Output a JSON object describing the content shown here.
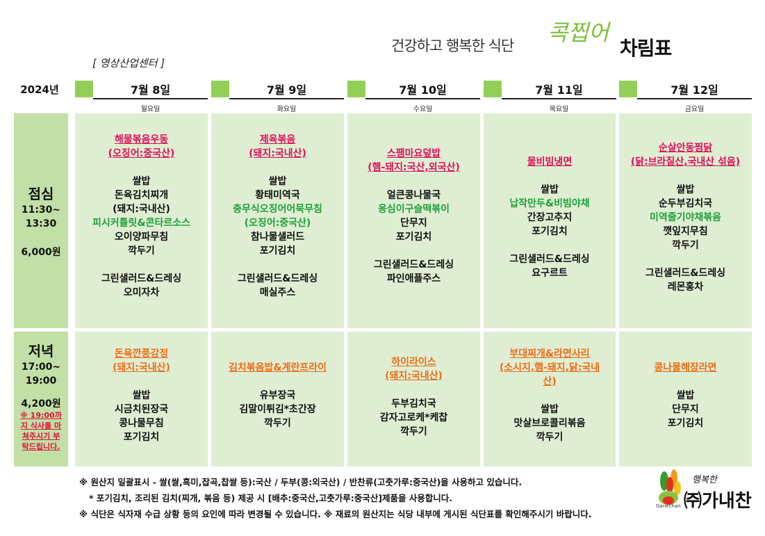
{
  "header": {
    "subtitle": "건강하고 행복한 식단",
    "script": "콕찝어",
    "title": "차림표",
    "center": "[ 영상산업센터 ]"
  },
  "year": "2024년",
  "days": [
    {
      "date": "7월 8일",
      "dow": "월요일"
    },
    {
      "date": "7월 9일",
      "dow": "화요일"
    },
    {
      "date": "7월 10일",
      "dow": "수요일"
    },
    {
      "date": "7월 11일",
      "dow": "목요일"
    },
    {
      "date": "7월 12일",
      "dow": "금요일"
    }
  ],
  "lunch_label": {
    "title": "점심",
    "time1": "11:30~",
    "time2": "13:30",
    "price": "6,000원"
  },
  "dinner_label": {
    "title": "저녁",
    "time1": "17:00~",
    "time2": "19:00",
    "price": "4,200원",
    "note": [
      "※ 19:00까",
      "지 식사를 마",
      "쳐주시기 부",
      "탁드립니다."
    ]
  },
  "lunch": [
    {
      "main1": "해물볶음우동",
      "main2": "(오징어:중국산)",
      "items": [
        "쌀밥",
        "돈육김치찌개",
        "(돼지:국내산)",
        "피시커틀릿&콘타르소스",
        "오이양파무침",
        "깍두기"
      ],
      "extra": [
        "그린샐러드&드레싱",
        "오미자차"
      ]
    },
    {
      "main1": "제육볶음",
      "main2": "(돼지:국내산)",
      "items": [
        "쌀밥",
        "황태미역국",
        "충무식오징어어묵무침",
        "(오징어:중국산)",
        "참나물샐러드",
        "포기김치"
      ],
      "extra": [
        "그린샐러드&드레싱",
        "매실주스"
      ]
    },
    {
      "main1": "스팸마요덮밥",
      "main2": "(햄-돼지:국산,외국산)",
      "items": [
        "얼큰콩나물국",
        "옹심이구슬떡볶이",
        "단무지",
        "포기김치"
      ],
      "extra": [
        "그린샐러드&드레싱",
        "파인애플주스"
      ]
    },
    {
      "main1": "물비빔냉면",
      "main2": "",
      "items": [
        "쌀밥",
        "납작만두&비빔야채",
        "간장고추지",
        "포기김치"
      ],
      "extra": [
        "그린샐러드&드레싱",
        "요구르트"
      ]
    },
    {
      "main1": "순살안동찜닭",
      "main2": "(닭:브라질산,국내산 섞음)",
      "items": [
        "쌀밥",
        "순두부김치국",
        "미역줄기야채볶음",
        "깻잎지무침",
        "깍두기"
      ],
      "extra": [
        "그린샐러드&드레싱",
        "레몬홍차"
      ]
    }
  ],
  "dinner": [
    {
      "main1": "돈육깐풍강정",
      "main2": "(돼지:국내산)",
      "items": [
        "쌀밥",
        "시금치된장국",
        "콩나물무침",
        "포기김치"
      ]
    },
    {
      "main1": "김치볶음밥&계란프라이",
      "main2": "",
      "items": [
        "유부장국",
        "김말이튀김*초간장",
        "깍두기"
      ]
    },
    {
      "main1": "하이라이스",
      "main2": "(돼지:국내산)",
      "items": [
        "두부김치국",
        "감자고로케*케찹",
        "깍두기"
      ]
    },
    {
      "main1": "부대찌개&라면사리",
      "main2": "(소시지,햄-돼지,닭:국내",
      "main3": "산)",
      "items": [
        "쌀밥",
        "맛살브로콜리볶음",
        "깍두기"
      ]
    },
    {
      "main1": "콩나물해장라면",
      "main2": "",
      "items": [
        "쌀밥",
        "단무지",
        "포기김치"
      ]
    }
  ],
  "footer": {
    "line1": "※ 원산지 일괄표시 - 쌀(쌀,흑미,잡곡,찹쌀 등):국산 / 두부(콩:외국산) / 반찬류(고춧가루:중국산)을 사용하고 있습니다.",
    "line2": "* 포기김치, 조리된 김치(찌개, 볶음 등) 제공 시  [배추:중국산,고춧가루:중국산]제품을 사용합니다.",
    "line3": "※ 식단은 식자재 수급 상황 등의 요인에 따라 변경될 수 있습니다. ※ 재료의 원산지는 식당 내부에 게시된 식단표를 확인해주시기 바랍니다."
  },
  "logo": {
    "small": "행복한",
    "text": "㈜가내찬",
    "tiny": "Ganechan"
  },
  "colors": {
    "label_green": "#c1dfa6",
    "cell_green": "#dfeed2",
    "accent_green": "#92cf58",
    "pink": "#e0105a",
    "orange": "#ef6b14",
    "green_text": "#1ea03c"
  }
}
